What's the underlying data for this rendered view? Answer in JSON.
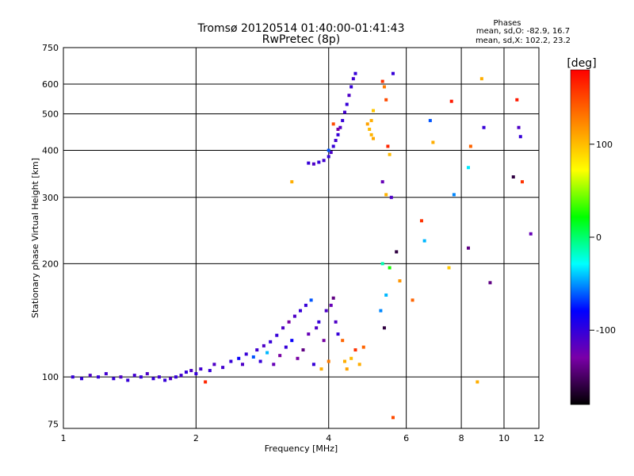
{
  "chart_data": {
    "type": "scatter",
    "title": "Tromsø 20120514 01:40:00-01:41:43",
    "subtitle": "RwPretec (8p)",
    "xlabel": "Frequency [MHz]",
    "ylabel": "Stationary phase Virtual Height [km]",
    "xscale": "log",
    "yscale": "log",
    "xlim": [
      1,
      12
    ],
    "ylim": [
      73,
      750
    ],
    "xticks": [
      1,
      2,
      4,
      6,
      8,
      10,
      12
    ],
    "yticks": [
      75,
      100,
      200,
      300,
      400,
      500,
      600,
      750
    ],
    "xgrid": [
      2,
      4,
      6,
      8,
      10
    ],
    "ygrid": [
      100,
      200,
      300,
      400,
      500,
      600
    ],
    "phases_box": {
      "title": "Phases",
      "line1": "mean, sd,O: -82.9, 16.7",
      "line2": "mean, sd,X: 102.2, 23.2"
    },
    "colorbar": {
      "label": "[deg]",
      "range": [
        -180,
        180
      ],
      "ticks": [
        -100,
        0,
        100
      ],
      "colormap": [
        "#000000",
        "#7a00a8",
        "#0000ff",
        "#00ffff",
        "#00ff00",
        "#ffff00",
        "#ff8000",
        "#ff0000"
      ]
    },
    "series": [
      {
        "x": 1.05,
        "y": 100,
        "phase": -100
      },
      {
        "x": 1.1,
        "y": 99,
        "phase": -100
      },
      {
        "x": 1.15,
        "y": 101,
        "phase": -110
      },
      {
        "x": 1.2,
        "y": 100,
        "phase": -100
      },
      {
        "x": 1.25,
        "y": 102,
        "phase": -105
      },
      {
        "x": 1.3,
        "y": 99,
        "phase": -100
      },
      {
        "x": 1.35,
        "y": 100,
        "phase": -110
      },
      {
        "x": 1.4,
        "y": 98,
        "phase": -100
      },
      {
        "x": 1.45,
        "y": 101,
        "phase": -105
      },
      {
        "x": 1.5,
        "y": 100,
        "phase": -100
      },
      {
        "x": 1.55,
        "y": 102,
        "phase": -110
      },
      {
        "x": 1.6,
        "y": 99,
        "phase": -100
      },
      {
        "x": 1.65,
        "y": 100,
        "phase": -105
      },
      {
        "x": 1.7,
        "y": 98,
        "phase": -100
      },
      {
        "x": 1.75,
        "y": 99,
        "phase": -110
      },
      {
        "x": 1.8,
        "y": 100,
        "phase": -100
      },
      {
        "x": 1.85,
        "y": 101,
        "phase": -105
      },
      {
        "x": 1.9,
        "y": 103,
        "phase": -100
      },
      {
        "x": 1.95,
        "y": 104,
        "phase": -110
      },
      {
        "x": 2.0,
        "y": 102,
        "phase": -100
      },
      {
        "x": 2.05,
        "y": 105,
        "phase": -105
      },
      {
        "x": 2.1,
        "y": 97,
        "phase": 165
      },
      {
        "x": 2.15,
        "y": 104,
        "phase": -100
      },
      {
        "x": 2.2,
        "y": 108,
        "phase": -110
      },
      {
        "x": 2.3,
        "y": 106,
        "phase": -105
      },
      {
        "x": 2.4,
        "y": 110,
        "phase": -100
      },
      {
        "x": 2.5,
        "y": 112,
        "phase": -80
      },
      {
        "x": 2.55,
        "y": 108,
        "phase": -110
      },
      {
        "x": 2.6,
        "y": 115,
        "phase": -100
      },
      {
        "x": 2.7,
        "y": 113,
        "phase": -60
      },
      {
        "x": 2.75,
        "y": 118,
        "phase": -105
      },
      {
        "x": 2.8,
        "y": 110,
        "phase": -100
      },
      {
        "x": 2.85,
        "y": 121,
        "phase": -110
      },
      {
        "x": 2.9,
        "y": 116,
        "phase": -40
      },
      {
        "x": 2.95,
        "y": 124,
        "phase": -100
      },
      {
        "x": 3.0,
        "y": 108,
        "phase": -120
      },
      {
        "x": 3.05,
        "y": 129,
        "phase": -100
      },
      {
        "x": 3.1,
        "y": 114,
        "phase": -130
      },
      {
        "x": 3.15,
        "y": 135,
        "phase": -110
      },
      {
        "x": 3.2,
        "y": 120,
        "phase": -100
      },
      {
        "x": 3.25,
        "y": 140,
        "phase": -130
      },
      {
        "x": 3.3,
        "y": 125,
        "phase": -80
      },
      {
        "x": 3.35,
        "y": 145,
        "phase": -110
      },
      {
        "x": 3.4,
        "y": 112,
        "phase": -130
      },
      {
        "x": 3.45,
        "y": 150,
        "phase": -100
      },
      {
        "x": 3.5,
        "y": 118,
        "phase": -140
      },
      {
        "x": 3.55,
        "y": 155,
        "phase": -100
      },
      {
        "x": 3.6,
        "y": 130,
        "phase": -120
      },
      {
        "x": 3.65,
        "y": 160,
        "phase": -60
      },
      {
        "x": 3.7,
        "y": 108,
        "phase": -100
      },
      {
        "x": 3.75,
        "y": 135,
        "phase": -110
      },
      {
        "x": 3.8,
        "y": 140,
        "phase": -100
      },
      {
        "x": 3.85,
        "y": 105,
        "phase": 110
      },
      {
        "x": 3.9,
        "y": 125,
        "phase": -130
      },
      {
        "x": 3.95,
        "y": 150,
        "phase": -110
      },
      {
        "x": 4.0,
        "y": 110,
        "phase": 130
      },
      {
        "x": 4.05,
        "y": 155,
        "phase": -120
      },
      {
        "x": 4.1,
        "y": 162,
        "phase": -140
      },
      {
        "x": 4.15,
        "y": 140,
        "phase": -110
      },
      {
        "x": 4.2,
        "y": 130,
        "phase": -100
      },
      {
        "x": 4.3,
        "y": 125,
        "phase": 140
      },
      {
        "x": 4.35,
        "y": 110,
        "phase": 110
      },
      {
        "x": 4.4,
        "y": 105,
        "phase": 115
      },
      {
        "x": 4.5,
        "y": 112,
        "phase": 105
      },
      {
        "x": 4.6,
        "y": 118,
        "phase": 160
      },
      {
        "x": 4.7,
        "y": 108,
        "phase": 110
      },
      {
        "x": 4.8,
        "y": 120,
        "phase": 140
      },
      {
        "x": 3.6,
        "y": 370,
        "phase": -100
      },
      {
        "x": 3.7,
        "y": 368,
        "phase": -110
      },
      {
        "x": 3.8,
        "y": 372,
        "phase": -100
      },
      {
        "x": 3.9,
        "y": 376,
        "phase": -105
      },
      {
        "x": 4.0,
        "y": 385,
        "phase": -100
      },
      {
        "x": 4.05,
        "y": 395,
        "phase": -110
      },
      {
        "x": 4.1,
        "y": 410,
        "phase": -100
      },
      {
        "x": 4.15,
        "y": 425,
        "phase": -105
      },
      {
        "x": 4.2,
        "y": 440,
        "phase": -100
      },
      {
        "x": 4.25,
        "y": 460,
        "phase": -110
      },
      {
        "x": 4.3,
        "y": 480,
        "phase": -100
      },
      {
        "x": 4.35,
        "y": 505,
        "phase": -105
      },
      {
        "x": 4.4,
        "y": 530,
        "phase": -100
      },
      {
        "x": 4.45,
        "y": 560,
        "phase": -110
      },
      {
        "x": 4.5,
        "y": 590,
        "phase": -100
      },
      {
        "x": 4.55,
        "y": 620,
        "phase": -105
      },
      {
        "x": 4.6,
        "y": 640,
        "phase": -100
      },
      {
        "x": 4.0,
        "y": 400,
        "phase": -60
      },
      {
        "x": 4.2,
        "y": 455,
        "phase": -130
      },
      {
        "x": 4.1,
        "y": 470,
        "phase": 150
      },
      {
        "x": 3.3,
        "y": 330,
        "phase": 110
      },
      {
        "x": 4.95,
        "y": 455,
        "phase": 105
      },
      {
        "x": 5.0,
        "y": 480,
        "phase": 110
      },
      {
        "x": 5.05,
        "y": 510,
        "phase": 100
      },
      {
        "x": 4.9,
        "y": 470,
        "phase": 115
      },
      {
        "x": 5.0,
        "y": 440,
        "phase": 108
      },
      {
        "x": 5.05,
        "y": 430,
        "phase": 112
      },
      {
        "x": 5.3,
        "y": 610,
        "phase": 160
      },
      {
        "x": 5.35,
        "y": 590,
        "phase": 130
      },
      {
        "x": 5.4,
        "y": 545,
        "phase": 150
      },
      {
        "x": 5.45,
        "y": 410,
        "phase": 165
      },
      {
        "x": 5.5,
        "y": 390,
        "phase": 105
      },
      {
        "x": 5.3,
        "y": 330,
        "phase": -120
      },
      {
        "x": 5.4,
        "y": 305,
        "phase": 108
      },
      {
        "x": 5.55,
        "y": 300,
        "phase": -110
      },
      {
        "x": 5.6,
        "y": 640,
        "phase": -100
      },
      {
        "x": 5.7,
        "y": 215,
        "phase": -160
      },
      {
        "x": 5.8,
        "y": 180,
        "phase": 120
      },
      {
        "x": 6.2,
        "y": 160,
        "phase": 140
      },
      {
        "x": 6.5,
        "y": 260,
        "phase": 160
      },
      {
        "x": 6.6,
        "y": 230,
        "phase": -40
      },
      {
        "x": 6.8,
        "y": 480,
        "phase": -60
      },
      {
        "x": 6.9,
        "y": 420,
        "phase": 110
      },
      {
        "x": 7.5,
        "y": 195,
        "phase": 100
      },
      {
        "x": 7.6,
        "y": 540,
        "phase": 170
      },
      {
        "x": 7.7,
        "y": 305,
        "phase": -50
      },
      {
        "x": 8.3,
        "y": 360,
        "phase": -30
      },
      {
        "x": 8.3,
        "y": 220,
        "phase": -140
      },
      {
        "x": 8.4,
        "y": 410,
        "phase": 140
      },
      {
        "x": 8.7,
        "y": 97,
        "phase": 110
      },
      {
        "x": 8.9,
        "y": 620,
        "phase": 110
      },
      {
        "x": 9.0,
        "y": 460,
        "phase": -100
      },
      {
        "x": 9.3,
        "y": 178,
        "phase": -140
      },
      {
        "x": 10.5,
        "y": 340,
        "phase": -160
      },
      {
        "x": 10.7,
        "y": 545,
        "phase": 170
      },
      {
        "x": 10.8,
        "y": 460,
        "phase": -110
      },
      {
        "x": 10.9,
        "y": 435,
        "phase": -100
      },
      {
        "x": 11.0,
        "y": 330,
        "phase": 160
      },
      {
        "x": 11.5,
        "y": 240,
        "phase": -120
      },
      {
        "x": 5.25,
        "y": 150,
        "phase": -50
      },
      {
        "x": 5.3,
        "y": 200,
        "phase": -10
      },
      {
        "x": 5.35,
        "y": 135,
        "phase": -160
      },
      {
        "x": 5.4,
        "y": 165,
        "phase": -40
      },
      {
        "x": 5.5,
        "y": 195,
        "phase": 30
      },
      {
        "x": 5.6,
        "y": 78,
        "phase": 150
      }
    ]
  }
}
